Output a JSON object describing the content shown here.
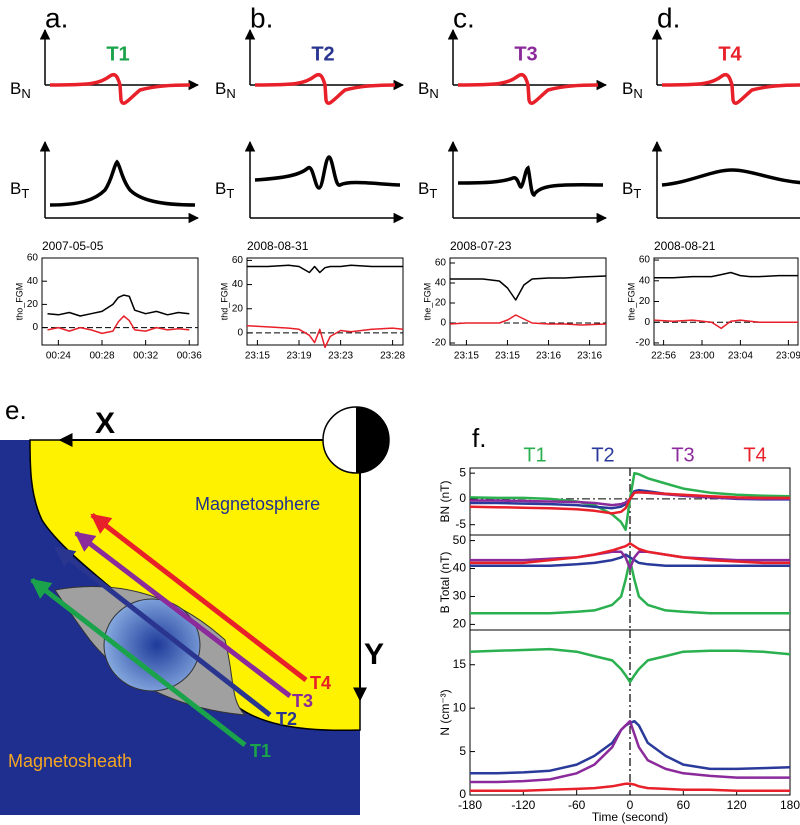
{
  "schematic": [
    {
      "label": "a.",
      "probe": "T1",
      "color": "#1aa34a"
    },
    {
      "label": "b.",
      "probe": "T2",
      "color": "#2a3590"
    },
    {
      "label": "c.",
      "probe": "T3",
      "color": "#8b2a9a"
    },
    {
      "label": "d.",
      "probe": "T4",
      "color": "#e8202a"
    }
  ],
  "b_symbol": "B",
  "n_sub": "N",
  "t_sub": "T",
  "diagram": {
    "label": "e.",
    "x_axis": "X",
    "y_axis": "Y",
    "inside": "Magnetosphere",
    "outside": "Magnetosheath",
    "probes": [
      "T1",
      "T2",
      "T3",
      "T4"
    ]
  },
  "f_label": "f.",
  "chart_data": [
    {
      "type": "line",
      "title": "2007-05-05",
      "ylabel": "tho_FGM",
      "xlim": [
        22.5,
        36.8
      ],
      "xticks": [
        {
          "value": 24,
          "label": "00:24"
        },
        {
          "value": 28,
          "label": "00:28"
        },
        {
          "value": 32,
          "label": "00:32"
        },
        {
          "value": 36,
          "label": "00:36"
        }
      ],
      "ylim": [
        -15,
        60
      ],
      "yticks": [
        60,
        40,
        20,
        0
      ],
      "x": [
        23,
        24,
        25,
        26,
        27,
        28,
        29,
        29.5,
        30,
        30.5,
        31,
        32,
        33,
        34,
        35,
        36
      ],
      "series": [
        {
          "color": "#000000",
          "values": [
            12,
            11,
            13,
            10,
            12,
            14,
            20,
            26,
            28,
            27,
            15,
            12,
            14,
            11,
            13,
            12
          ]
        },
        {
          "color": "#e8202a",
          "values": [
            -2,
            0,
            -3,
            0,
            -2,
            -5,
            -3,
            5,
            10,
            6,
            -2,
            -3,
            0,
            -2,
            -1,
            -2
          ]
        }
      ]
    },
    {
      "type": "line",
      "title": "2008-08-31",
      "ylabel": "thd_FGM",
      "xlim": [
        1394,
        1409
      ],
      "xticks": [
        {
          "value": 1395,
          "label": "23:15"
        },
        {
          "value": 1399,
          "label": "23:19"
        },
        {
          "value": 1403,
          "label": "23:23"
        },
        {
          "value": 1408,
          "label": "23:28"
        }
      ],
      "ylim": [
        -10,
        62
      ],
      "yticks": [
        60,
        40,
        20,
        0
      ],
      "x": [
        1394,
        1396,
        1398,
        1399,
        1400,
        1400.5,
        1401,
        1401.5,
        1402,
        1403,
        1404,
        1406,
        1408,
        1409
      ],
      "series": [
        {
          "color": "#000000",
          "values": [
            55,
            55,
            56,
            55,
            50,
            55,
            50,
            54,
            55,
            55,
            56,
            55,
            55,
            55
          ]
        },
        {
          "color": "#e8202a",
          "values": [
            6,
            5,
            4,
            3,
            -2,
            -8,
            3,
            -12,
            -3,
            2,
            1,
            3,
            4,
            3
          ]
        }
      ]
    },
    {
      "type": "line",
      "title": "2008-07-23",
      "ylabel": "the_FGM",
      "xlim": [
        1394.8,
        1396.7
      ],
      "xticks": [
        {
          "value": 1395,
          "label": "23:15"
        },
        {
          "value": 1395.5,
          "label": "23:15"
        },
        {
          "value": 1396,
          "label": "23:16"
        },
        {
          "value": 1396.5,
          "label": "23:16"
        }
      ],
      "ylim": [
        -22,
        65
      ],
      "yticks": [
        60,
        40,
        20,
        0,
        -20
      ],
      "x": [
        1394.8,
        1395,
        1395.2,
        1395.4,
        1395.5,
        1395.6,
        1395.7,
        1395.8,
        1396,
        1396.2,
        1396.4,
        1396.7
      ],
      "series": [
        {
          "color": "#000000",
          "values": [
            44,
            44,
            44,
            42,
            35,
            23,
            38,
            44,
            45,
            45,
            46,
            47
          ]
        },
        {
          "color": "#e8202a",
          "values": [
            -1,
            0,
            0,
            0,
            3,
            8,
            4,
            0,
            -1,
            -1,
            -2,
            -1
          ]
        }
      ]
    },
    {
      "type": "line",
      "title": "2008-08-21",
      "ylabel": "the_FGM",
      "xlim": [
        1375,
        1390
      ],
      "xticks": [
        {
          "value": 1376,
          "label": "22:56"
        },
        {
          "value": 1380,
          "label": "23:00"
        },
        {
          "value": 1384,
          "label": "23:04"
        },
        {
          "value": 1389,
          "label": "23:09"
        }
      ],
      "ylim": [
        -22,
        62
      ],
      "yticks": [
        60,
        40,
        20,
        0,
        -20
      ],
      "x": [
        1375,
        1377,
        1379,
        1381,
        1382,
        1383,
        1384,
        1385,
        1386,
        1388,
        1390
      ],
      "series": [
        {
          "color": "#000000",
          "values": [
            43,
            43,
            44,
            44,
            46,
            48,
            45,
            44,
            44,
            45,
            45
          ]
        },
        {
          "color": "#e8202a",
          "values": [
            2,
            1,
            2,
            0,
            -6,
            1,
            2,
            1,
            0,
            0,
            0
          ]
        }
      ]
    },
    {
      "type": "line",
      "ylabel": "BN (nT)",
      "xlim": [
        -180,
        180
      ],
      "ylim": [
        -7,
        6
      ],
      "yticks": [
        -5,
        0,
        5
      ],
      "x": [
        -180,
        -150,
        -120,
        -90,
        -60,
        -40,
        -20,
        -10,
        -5,
        0,
        5,
        10,
        20,
        40,
        60,
        90,
        120,
        150,
        180
      ],
      "series": [
        {
          "name": "T1",
          "color": "#2ab04f",
          "values": [
            0.3,
            0.2,
            0.2,
            0,
            -0.5,
            -1.2,
            -3,
            -4.5,
            -6,
            0,
            5,
            4.8,
            4,
            3,
            2,
            1.2,
            0.8,
            0.6,
            0.5
          ]
        },
        {
          "name": "T2",
          "color": "#2a3a9a",
          "values": [
            -0.8,
            -0.8,
            -0.9,
            -1,
            -1.2,
            -1.5,
            -1.8,
            -1.5,
            -1,
            0,
            1.5,
            1.7,
            1.5,
            1,
            0.6,
            0.3,
            0,
            -0.1,
            -0.1
          ]
        },
        {
          "name": "T3",
          "color": "#8b2a9a",
          "values": [
            -0.3,
            -0.3,
            -0.4,
            -0.5,
            -0.6,
            -0.8,
            -1.2,
            -1,
            -0.7,
            0,
            1.2,
            1.3,
            1.2,
            0.9,
            0.6,
            0.3,
            0.1,
            0,
            0
          ]
        },
        {
          "name": "T4",
          "color": "#e8202a",
          "values": [
            -1.5,
            -1.6,
            -1.7,
            -1.8,
            -2,
            -2.3,
            -2.8,
            -2.5,
            -1.8,
            0,
            1.2,
            1.3,
            1.2,
            1,
            0.8,
            0.5,
            0.3,
            0.2,
            0.2
          ]
        }
      ]
    },
    {
      "type": "line",
      "ylabel": "B Total (nT)",
      "xlim": [
        -180,
        180
      ],
      "ylim": [
        18,
        52
      ],
      "yticks": [
        20,
        30,
        40,
        50
      ],
      "x": [
        -180,
        -150,
        -120,
        -90,
        -60,
        -40,
        -20,
        -10,
        -5,
        0,
        5,
        10,
        20,
        40,
        60,
        90,
        120,
        150,
        180
      ],
      "series": [
        {
          "color": "#2ab04f",
          "values": [
            24,
            24,
            24,
            24,
            24.5,
            25,
            27,
            30,
            36,
            43,
            36,
            30,
            27,
            25,
            24.5,
            24,
            24,
            24,
            24
          ]
        },
        {
          "color": "#2a3a9a",
          "values": [
            41,
            41,
            41,
            41,
            41.5,
            42,
            43,
            44,
            45,
            44,
            43,
            42,
            41.5,
            41,
            41,
            41,
            41,
            41,
            41
          ]
        },
        {
          "color": "#8b2a9a",
          "values": [
            43,
            43,
            43,
            43.5,
            44,
            45,
            46,
            46,
            44,
            40,
            44,
            46,
            46,
            45,
            44,
            43.5,
            43,
            43,
            43
          ]
        },
        {
          "color": "#e8202a",
          "values": [
            42,
            42,
            42,
            43,
            44,
            45,
            46.5,
            47.5,
            48,
            49,
            48,
            47,
            46,
            45,
            44,
            43,
            42.5,
            42,
            42
          ]
        }
      ]
    },
    {
      "type": "line",
      "ylabel": "N (cm⁻³)",
      "xlabel": "Time (second)",
      "xlim": [
        -180,
        180
      ],
      "xticks": [
        -180,
        -120,
        -60,
        0,
        60,
        120,
        180
      ],
      "ylim": [
        0,
        19
      ],
      "yticks": [
        0,
        5,
        10,
        15
      ],
      "x": [
        -180,
        -150,
        -120,
        -90,
        -60,
        -40,
        -20,
        -10,
        -5,
        0,
        5,
        10,
        20,
        40,
        60,
        90,
        120,
        150,
        180
      ],
      "series": [
        {
          "color": "#2ab04f",
          "values": [
            16.5,
            16.6,
            16.7,
            16.8,
            16.5,
            16,
            15.5,
            14.5,
            13.8,
            13,
            13.8,
            14.5,
            15.5,
            16,
            16.5,
            16.6,
            16.6,
            16.5,
            16.2
          ]
        },
        {
          "color": "#2a3a9a",
          "values": [
            2.5,
            2.5,
            2.6,
            2.8,
            3.5,
            4.5,
            6,
            7.5,
            8,
            8.3,
            8.5,
            8,
            6,
            4.5,
            3.5,
            3,
            3,
            3.1,
            3.2
          ]
        },
        {
          "color": "#8b2a9a",
          "values": [
            1.5,
            1.5,
            1.6,
            1.8,
            2.5,
            3.5,
            5.5,
            7.5,
            8,
            8.5,
            7,
            5.5,
            4,
            3,
            2.5,
            2.2,
            2,
            2,
            2
          ]
        },
        {
          "color": "#e8202a",
          "values": [
            0.5,
            0.5,
            0.5,
            0.6,
            0.7,
            0.8,
            1,
            1.2,
            1.3,
            1.3,
            1.2,
            1,
            0.8,
            0.7,
            0.6,
            0.6,
            0.5,
            0.5,
            0.5
          ]
        }
      ]
    }
  ]
}
